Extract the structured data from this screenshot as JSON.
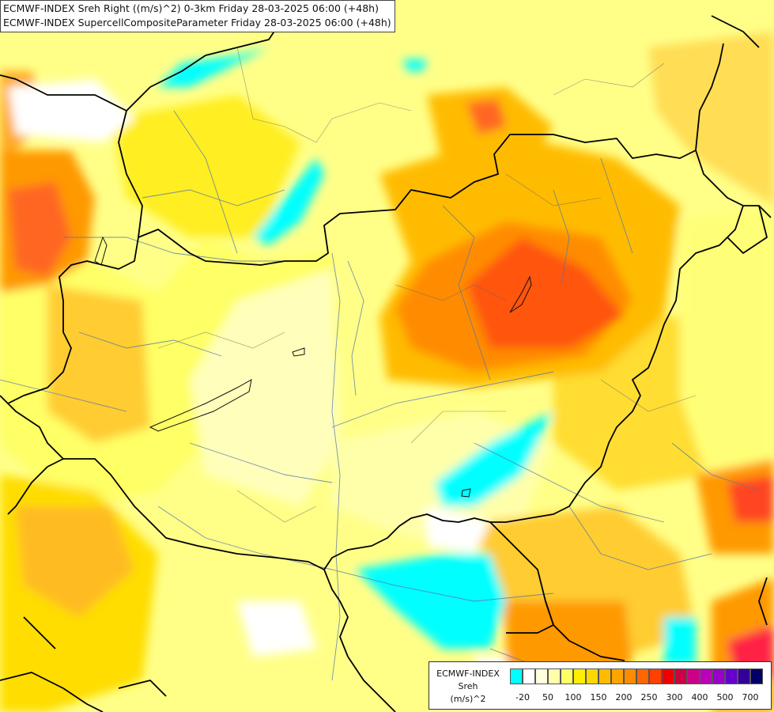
{
  "header": {
    "line1": "ECMWF-INDEX Sreh Right ((m/s)^2) 0-3km Friday 28-03-2025 06:00 (+48h)",
    "line2": "ECMWF-INDEX SupercellCompositeParameter Friday 28-03-2025 06:00 (+48h)"
  },
  "legend": {
    "title": "ECMWF-INDEX",
    "variable": "Sreh",
    "unit": "(m/s)^2",
    "colors": [
      "#00ffff",
      "#ffffff",
      "#ffffdd",
      "#ffffaa",
      "#ffff66",
      "#ffee00",
      "#ffd700",
      "#ffbb00",
      "#ffa500",
      "#ff8c00",
      "#ff6600",
      "#ff4000",
      "#ee0000",
      "#cc0044",
      "#cc0088",
      "#bb00bb",
      "#9900cc",
      "#6600cc",
      "#330099",
      "#000066"
    ],
    "ticks": [
      "-20",
      "50",
      "100",
      "150",
      "200",
      "250",
      "300",
      "400",
      "500",
      "700"
    ]
  }
}
